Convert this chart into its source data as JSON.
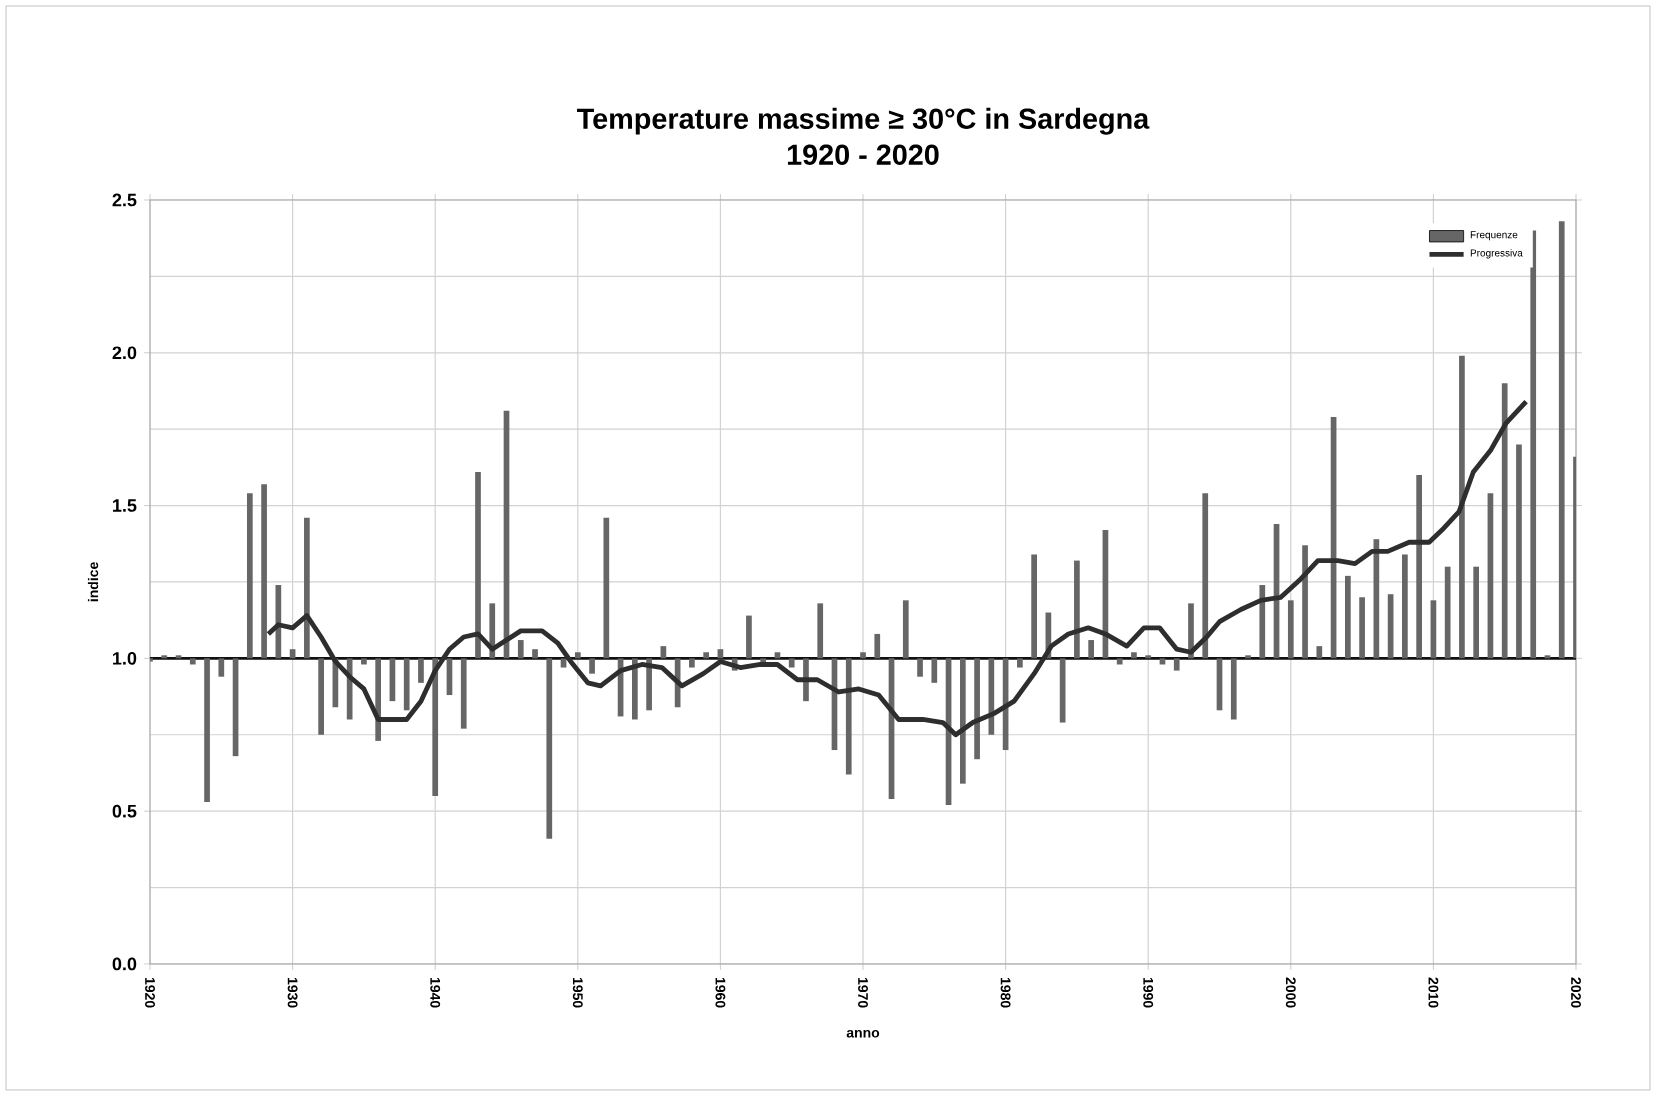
{
  "chart_data": {
    "type": "bar",
    "title": "Temperature massime ≥  30°C in Sardegna",
    "subtitle": "1920 - 2020",
    "xlabel": "anno",
    "ylabel": "indice",
    "x": [
      1920,
      1921,
      1922,
      1923,
      1924,
      1925,
      1926,
      1927,
      1928,
      1929,
      1930,
      1931,
      1932,
      1933,
      1934,
      1935,
      1936,
      1937,
      1938,
      1939,
      1940,
      1941,
      1942,
      1943,
      1944,
      1945,
      1946,
      1947,
      1948,
      1949,
      1950,
      1951,
      1952,
      1953,
      1954,
      1955,
      1956,
      1957,
      1958,
      1959,
      1960,
      1961,
      1962,
      1963,
      1964,
      1965,
      1966,
      1967,
      1968,
      1969,
      1970,
      1971,
      1972,
      1973,
      1974,
      1975,
      1976,
      1977,
      1978,
      1979,
      1980,
      1981,
      1982,
      1983,
      1984,
      1985,
      1986,
      1987,
      1988,
      1989,
      1990,
      1991,
      1992,
      1993,
      1994,
      1995,
      1996,
      1997,
      1998,
      1999,
      2000,
      2001,
      2002,
      2003,
      2004,
      2005,
      2006,
      2007,
      2008,
      2009,
      2010,
      2011,
      2012,
      2013,
      2014,
      2015,
      2016,
      2017,
      2018,
      2019,
      2020
    ],
    "series": [
      {
        "name": "Frequenze",
        "color": "#666666",
        "base": [
          1,
          1,
          1,
          1,
          1,
          1,
          1,
          1,
          1,
          1,
          1,
          1,
          1,
          1,
          1,
          1,
          1,
          1,
          1,
          1,
          1,
          1,
          1,
          1,
          1,
          1,
          1,
          1,
          1,
          1,
          1,
          1,
          1,
          1,
          1,
          1,
          1,
          1,
          1,
          1,
          1,
          1,
          1,
          1,
          1,
          1,
          1,
          1,
          1,
          1,
          1,
          1,
          1,
          1,
          1,
          1,
          1,
          1,
          1,
          1,
          1,
          1,
          1,
          1,
          1,
          1,
          1,
          1,
          1,
          1,
          1,
          1,
          1,
          1,
          1,
          1,
          1,
          1,
          1,
          1,
          1,
          1,
          1,
          1,
          1,
          1,
          1,
          1,
          1,
          1,
          1,
          1,
          1,
          1,
          1,
          1,
          1,
          1,
          1,
          1,
          1
        ],
        "values": [
          -0.01,
          0.01,
          0.01,
          -0.02,
          -0.47,
          -0.06,
          -0.32,
          0.54,
          0.57,
          0.24,
          0.03,
          0.46,
          -0.25,
          -0.16,
          -0.2,
          -0.02,
          -0.27,
          -0.14,
          -0.17,
          -0.08,
          -0.45,
          -0.12,
          -0.23,
          0.61,
          0.18,
          0.81,
          0.06,
          0.03,
          -0.59,
          -0.03,
          0.02,
          -0.05,
          0.46,
          -0.19,
          -0.2,
          -0.17,
          0.04,
          -0.16,
          -0.03,
          0.02,
          0.03,
          -0.04,
          0.14,
          -0.02,
          0.02,
          -0.03,
          -0.14,
          0.18,
          -0.3,
          -0.38,
          0.02,
          0.08,
          -0.46,
          0.19,
          -0.06,
          -0.08,
          -0.48,
          -0.41,
          -0.33,
          -0.25,
          -0.3,
          -0.03,
          0.34,
          0.15,
          -0.21,
          0.32,
          0.06,
          0.42,
          -0.02,
          0.02,
          0.01,
          -0.02,
          -0.04,
          0.18,
          0.54,
          -0.17,
          -0.2,
          0.01,
          0.24,
          0.44,
          0.19,
          0.37,
          0.04,
          0.79,
          0.27,
          0.2,
          0.39,
          0.21,
          0.34,
          0.6,
          0.19,
          0.3,
          0.99,
          0.3,
          0.54,
          0.9,
          0.7,
          1.4,
          0.01,
          1.43,
          0.66
        ]
      },
      {
        "name": "Progressiva",
        "type": "line",
        "color": "#2e2e2e",
        "x": [
          1928.3,
          1929,
          1930,
          1931,
          1932,
          1933,
          1934,
          1935,
          1936,
          1938,
          1939,
          1940,
          1941,
          1942,
          1943,
          1944,
          1945,
          1946,
          1947.5,
          1948.6,
          1949.5,
          1950.7,
          1951.6,
          1953,
          1954.5,
          1955.9,
          1957.3,
          1958.8,
          1960,
          1961.4,
          1962.8,
          1964,
          1965.4,
          1966.8,
          1968.3,
          1969.7,
          1971.1,
          1972.5,
          1974.2,
          1975.6,
          1976.5,
          1977.7,
          1979.2,
          1980.6,
          1982,
          1983.2,
          1984.4,
          1985.8,
          1987,
          1988.5,
          1989.7,
          1990.8,
          1992,
          1993,
          1994.1,
          1995,
          1996.5,
          1997.9,
          1999.3,
          2000.7,
          2001.9,
          2003.3,
          2004.5,
          2005.7,
          2006.8,
          2008.3,
          2009.7,
          2010.6,
          2011.8,
          2012.8,
          2014,
          2015.1,
          2016.5
        ],
        "values": [
          1.08,
          1.11,
          1.1,
          1.14,
          1.07,
          0.99,
          0.94,
          0.9,
          0.8,
          0.8,
          0.86,
          0.96,
          1.03,
          1.07,
          1.08,
          1.03,
          1.06,
          1.09,
          1.09,
          1.05,
          0.99,
          0.92,
          0.91,
          0.96,
          0.98,
          0.97,
          0.91,
          0.95,
          0.99,
          0.97,
          0.98,
          0.98,
          0.93,
          0.93,
          0.89,
          0.9,
          0.88,
          0.8,
          0.8,
          0.79,
          0.75,
          0.79,
          0.82,
          0.86,
          0.95,
          1.04,
          1.08,
          1.1,
          1.08,
          1.04,
          1.1,
          1.1,
          1.03,
          1.02,
          1.07,
          1.12,
          1.16,
          1.19,
          1.2,
          1.26,
          1.32,
          1.32,
          1.31,
          1.35,
          1.35,
          1.38,
          1.38,
          1.42,
          1.48,
          1.61,
          1.68,
          1.77,
          1.84
        ]
      }
    ],
    "xlim": [
      1920,
      2020
    ],
    "xticks": [
      1920,
      1930,
      1940,
      1950,
      1960,
      1970,
      1980,
      1990,
      2000,
      2010,
      2020
    ],
    "ylim": [
      0,
      2.5
    ],
    "yticks": [
      {
        "value": 0,
        "label": "0.0"
      },
      {
        "value": 0.5,
        "label": "0.5"
      },
      {
        "value": 1,
        "label": "1.0"
      },
      {
        "value": 1.5,
        "label": "1.5"
      },
      {
        "value": 2,
        "label": "2.0"
      },
      {
        "value": 2.5,
        "label": "2.5"
      }
    ],
    "ref_lines": [
      {
        "axis": "y",
        "value": 1,
        "color": "#111111"
      }
    ],
    "grid": true,
    "legend": "top right"
  }
}
